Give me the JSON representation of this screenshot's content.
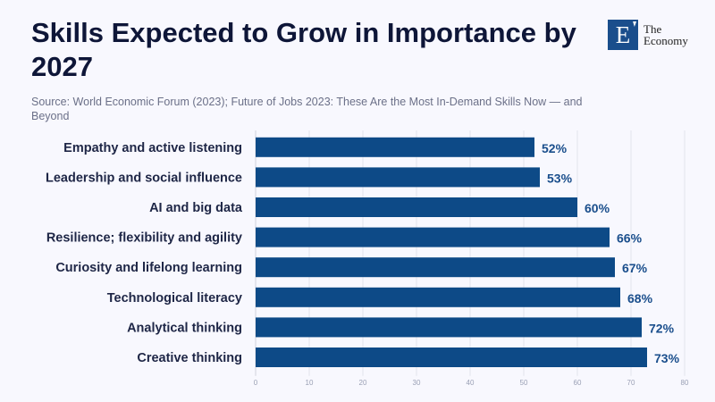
{
  "header": {
    "title": "Skills Expected to Grow in Importance by 2027",
    "source": "Source: World Economic Forum (2023); Future of Jobs 2023: These Are the Most In-Demand Skills Now — and Beyond"
  },
  "logo": {
    "mark": "E",
    "line1": "The",
    "line2": "Economy"
  },
  "chart_data": {
    "type": "bar",
    "orientation": "horizontal",
    "title": "Skills Expected to Grow in Importance by 2027",
    "categories": [
      "Empathy and active listening",
      "Leadership and social influence",
      "AI and big data",
      "Resilience; flexibility and agility",
      "Curiosity and lifelong learning",
      "Technological literacy",
      "Analytical thinking",
      "Creative thinking"
    ],
    "values": [
      52,
      53,
      60,
      66,
      67,
      68,
      72,
      73
    ],
    "value_labels": [
      "52%",
      "53%",
      "60%",
      "66%",
      "67%",
      "68%",
      "72%",
      "73%"
    ],
    "xlabel": "",
    "ylabel": "",
    "xlim": [
      0,
      80
    ],
    "xticks": [
      0,
      10,
      20,
      30,
      40,
      50,
      60,
      70,
      80
    ],
    "grid": true,
    "bar_color": "#0d4a87",
    "label_color": "#1a4e8c"
  }
}
